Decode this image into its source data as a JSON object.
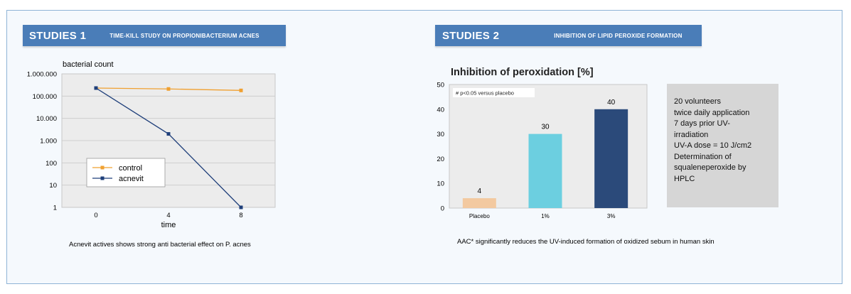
{
  "panel1": {
    "header_num": "STUDIES 1",
    "header_sub": "TIME-KILL STUDY ON PROPIONIBACTERIUM ACNES",
    "caption": "Acnevit actives shows strong anti bacterial effect on P. acnes"
  },
  "panel2": {
    "header_num": "STUDIES 2",
    "header_sub": "INHIBITION OF LIPID PEROXIDE FORMATION",
    "caption": "AAC* significantly reduces the UV-induced formation of oxidized sebum in human skin",
    "info_lines": [
      "20 volunteers",
      "twice daily application",
      "7 days prior UV-",
      "irradiation",
      "UV-A dose = 10 J/cm2",
      "Determination of",
      "squaleneperoxide by",
      "HPLC"
    ]
  },
  "colors": {
    "control": "#f0a030",
    "acnevit": "#1f3f7a",
    "placebo": "#f3c9a0",
    "one_pct": "#6ccfe0",
    "three_pct": "#2b4a7a",
    "header": "#4a7db8"
  },
  "chart_data": [
    {
      "type": "line",
      "title": "",
      "ylabel": "bacterial count",
      "xlabel": "time",
      "yscale": "log",
      "ylim": [
        1,
        1000000
      ],
      "ytick_labels": [
        "1",
        "10",
        "100",
        "1.000",
        "10.000",
        "100.000",
        "1.000.000"
      ],
      "ytick_values": [
        1,
        10,
        100,
        1000,
        10000,
        100000,
        1000000
      ],
      "x": [
        0,
        4,
        8
      ],
      "xtick_labels": [
        "0",
        "4",
        "8"
      ],
      "grid": true,
      "legend": "center-left",
      "series": [
        {
          "name": "control",
          "values": [
            230000,
            210000,
            180000
          ]
        },
        {
          "name": "acnevit",
          "values": [
            230000,
            2000,
            1
          ]
        }
      ]
    },
    {
      "type": "bar",
      "title": "Inhibition of peroxidation [%]",
      "annotation": "# p<0.05 versus placebo",
      "categories": [
        "Placebo",
        "1%",
        "3%"
      ],
      "values": [
        4,
        30,
        40
      ],
      "data_labels": [
        "4",
        "30",
        "40"
      ],
      "ylim": [
        0,
        50
      ],
      "ytick_labels": [
        "0",
        "10",
        "20",
        "30",
        "40",
        "50"
      ],
      "ytick_values": [
        0,
        10,
        20,
        30,
        40,
        50
      ]
    }
  ]
}
